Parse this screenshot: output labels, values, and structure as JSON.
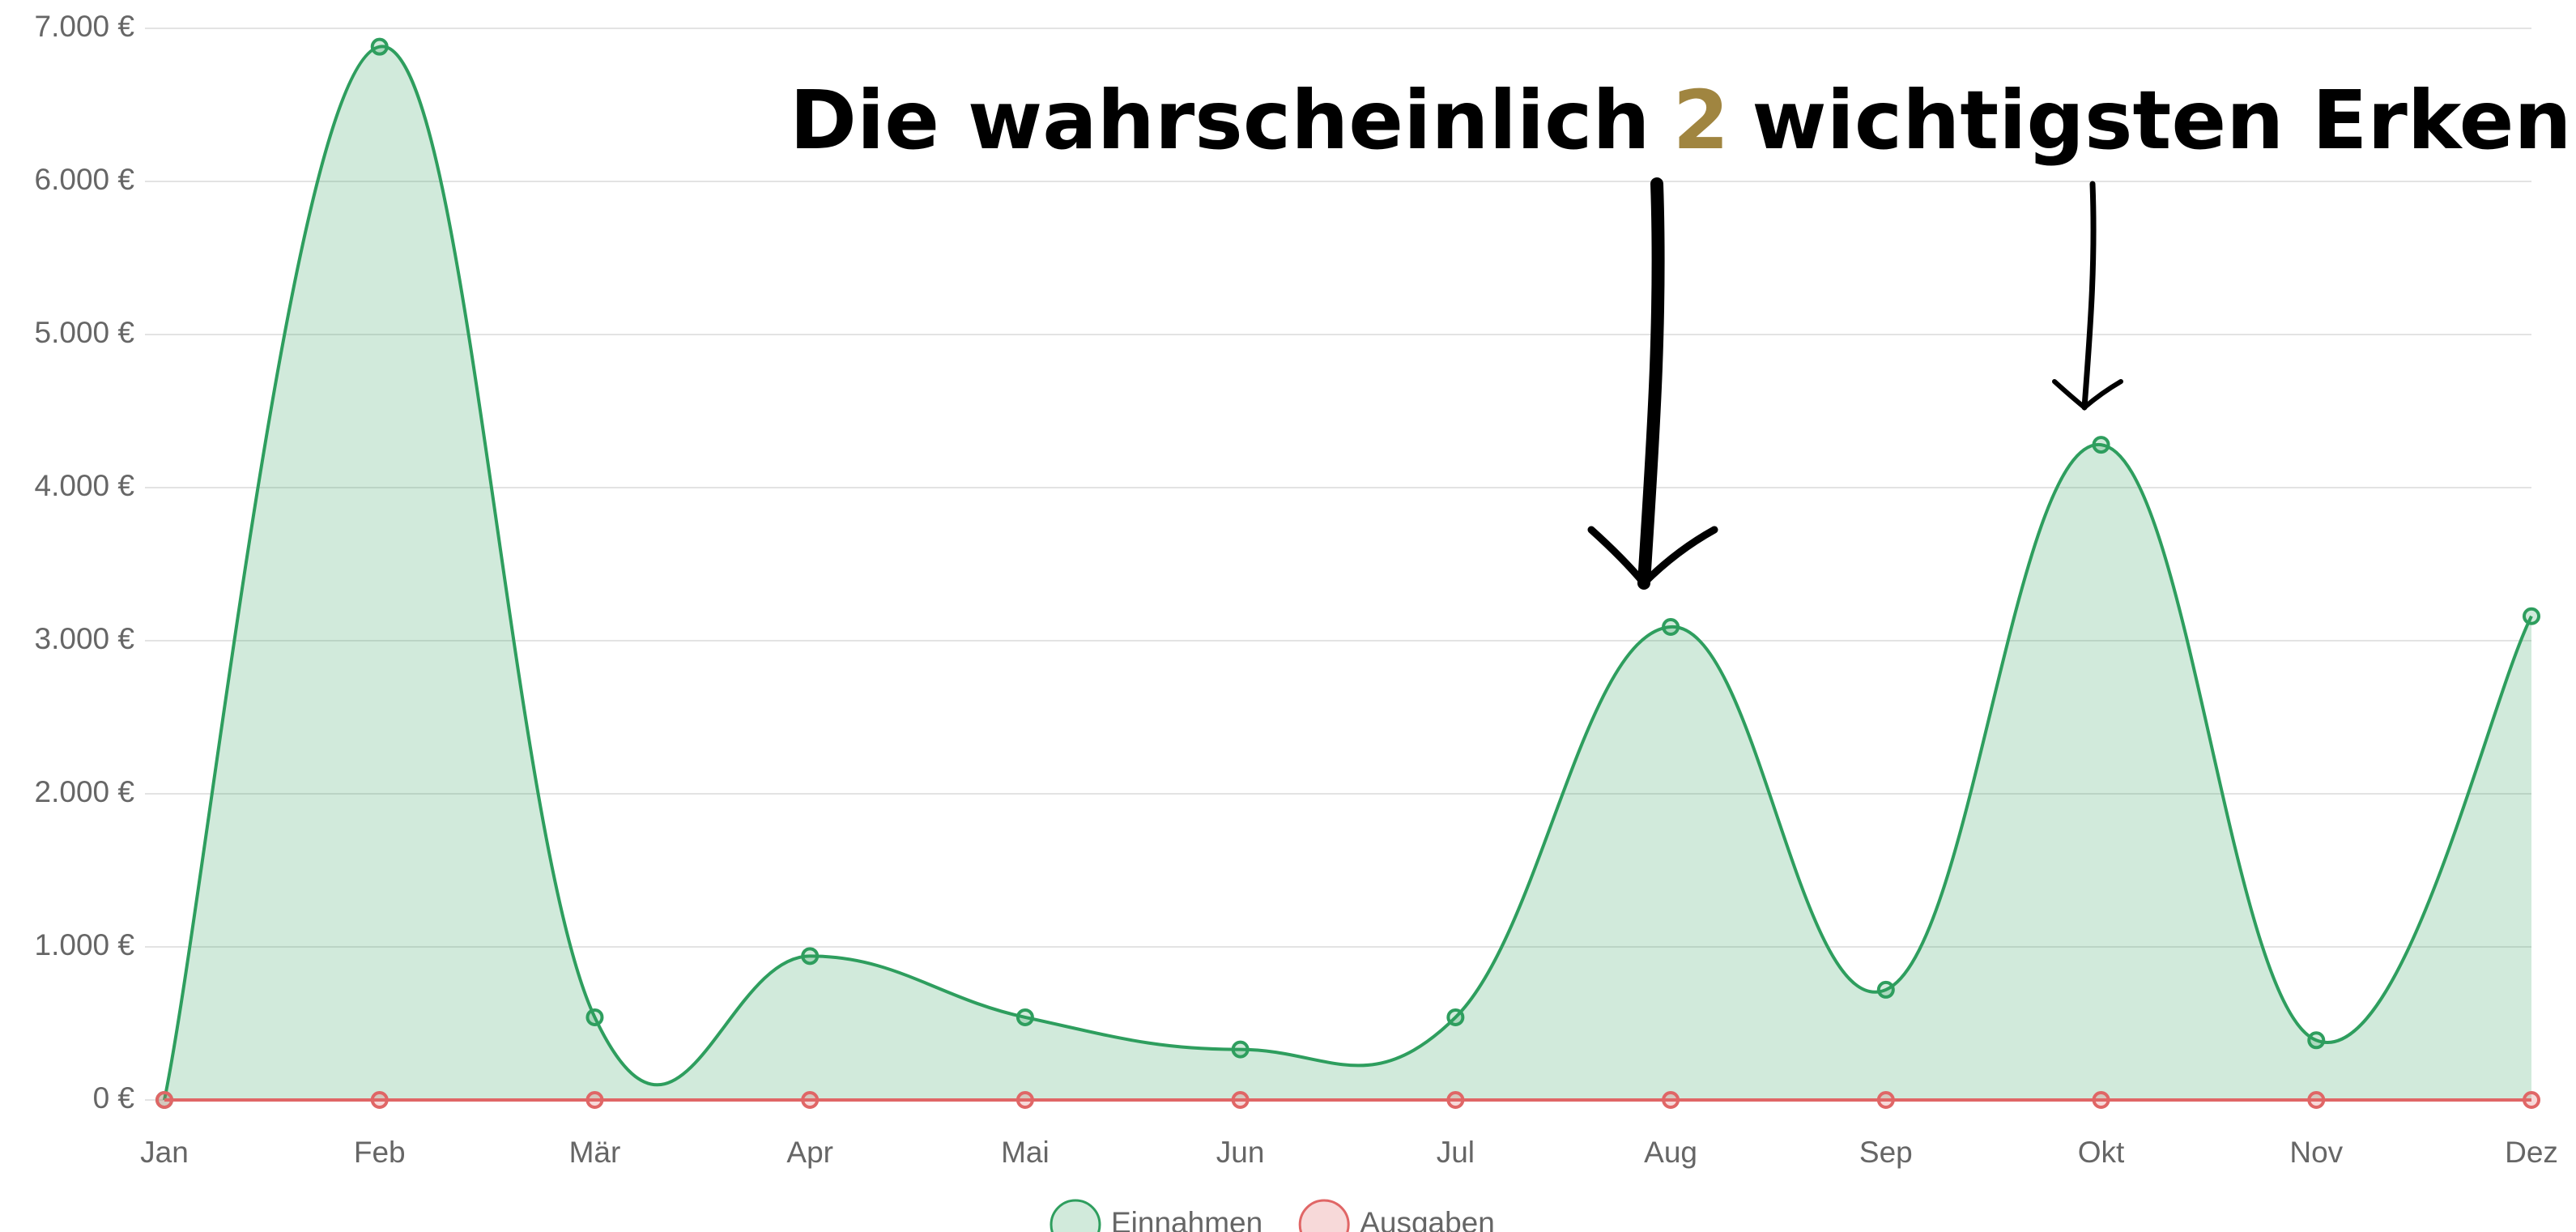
{
  "chart_data": {
    "type": "line",
    "annotation": [
      "Die wahrscheinlich",
      "2",
      "wichtigsten Erkenntn"
    ],
    "categories": [
      "Jan",
      "Feb",
      "Mär",
      "Apr",
      "Mai",
      "Jun",
      "Jul",
      "Aug",
      "Sep",
      "Okt",
      "Nov",
      "Dez"
    ],
    "series": [
      {
        "name": "Einnahmen",
        "color": "#2e9e5e",
        "fill": "rgba(46,160,90,0.22)",
        "values": [
          0,
          6880,
          540,
          940,
          540,
          330,
          540,
          3090,
          720,
          4280,
          390,
          3160
        ]
      },
      {
        "name": "Ausgaben",
        "color": "#e06666",
        "fill": "rgba(224,102,102,0.25)",
        "values": [
          0,
          0,
          0,
          0,
          0,
          0,
          0,
          0,
          0,
          0,
          0,
          0
        ]
      }
    ],
    "ylim": [
      0,
      7000
    ],
    "yticks": [
      {
        "value": 0,
        "label": "0 €"
      },
      {
        "value": 1000,
        "label": "1.000 €"
      },
      {
        "value": 2000,
        "label": "2.000 €"
      },
      {
        "value": 3000,
        "label": "3.000 €"
      },
      {
        "value": 4000,
        "label": "4.000 €"
      },
      {
        "value": 5000,
        "label": "5.000 €"
      },
      {
        "value": 6000,
        "label": "6.000 €"
      },
      {
        "value": 7000,
        "label": "7.000 €"
      }
    ],
    "grid": true,
    "smooth": true,
    "area": true,
    "legend": "bottom"
  }
}
